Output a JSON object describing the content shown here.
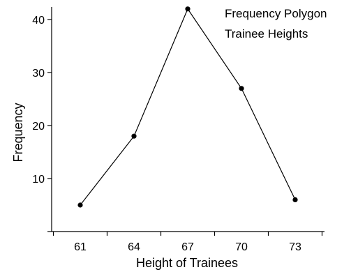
{
  "chart_data": {
    "type": "line",
    "title_lines": [
      "Frequency Polygon",
      "Trainee Heights"
    ],
    "xlabel": "Height of Trainees",
    "ylabel": "Frequency",
    "x_ticks": [
      "61",
      "64",
      "67",
      "70",
      "73"
    ],
    "y_ticks": [
      "10",
      "20",
      "30",
      "40"
    ],
    "ylim": [
      0,
      42.5
    ],
    "grid": false,
    "series": [
      {
        "x": [
          61,
          64,
          67,
          70,
          73
        ],
        "values": [
          5,
          18,
          42,
          27,
          6
        ]
      }
    ]
  }
}
